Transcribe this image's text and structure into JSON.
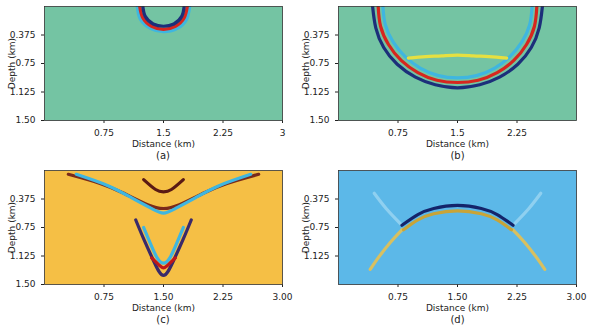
{
  "chart_data": [
    {
      "type": "line",
      "title": "(a)",
      "xlabel": "Distance (km)",
      "ylabel": "Depth (km)",
      "color": "#74c4a3",
      "xlim": [
        0,
        3
      ],
      "ylim": [
        0,
        1.5
      ],
      "xticks": [
        0.75,
        1.5,
        2.25,
        3
      ],
      "yticks": [
        0.375,
        0.75,
        1.125,
        {
          "value": 1.5,
          "label": "1.50"
        }
      ],
      "series": [
        {
          "color": "#3fb6e0",
          "x": [
            1.17,
            1.21,
            1.34,
            1.5,
            1.67,
            1.79,
            1.83
          ],
          "values": [
            0,
            0.17,
            0.29,
            0.33,
            0.29,
            0.17,
            0
          ]
        },
        {
          "color": "#d7261e",
          "x": [
            1.2,
            1.24,
            1.35,
            1.5,
            1.65,
            1.76,
            1.8
          ],
          "values": [
            0,
            0.15,
            0.26,
            0.3,
            0.26,
            0.15,
            0
          ]
        },
        {
          "color": "#1c2f7a",
          "x": [
            1.24,
            1.27,
            1.37,
            1.5,
            1.63,
            1.73,
            1.76
          ],
          "values": [
            0,
            0.13,
            0.23,
            0.26,
            0.23,
            0.13,
            0
          ]
        }
      ]
    },
    {
      "type": "line",
      "title": "(b)",
      "xlabel": "Distance (km)",
      "ylabel": "Depth (km)",
      "color": "#74c4a3",
      "xlim": [
        0,
        3
      ],
      "ylim": [
        0,
        1.5
      ],
      "xticks": [
        0.75,
        1.5,
        2.25
      ],
      "yticks": [
        0.375,
        0.75,
        1.125,
        {
          "value": 1.5,
          "label": "1.50"
        }
      ],
      "series": [
        {
          "color": "#1c2f7a",
          "x": [
            0.43,
            0.47,
            0.57,
            0.74,
            0.97,
            1.22,
            1.5,
            1.78,
            2.03,
            2.26,
            2.43,
            2.53,
            2.57
          ],
          "values": [
            0,
            0.28,
            0.54,
            0.76,
            0.93,
            1.03,
            1.07,
            1.03,
            0.93,
            0.76,
            0.54,
            0.28,
            0
          ]
        },
        {
          "color": "#d7261e",
          "x": [
            0.5,
            0.53,
            0.63,
            0.79,
            1.0,
            1.24,
            1.5,
            1.76,
            2.0,
            2.21,
            2.37,
            2.47,
            2.5
          ],
          "values": [
            0,
            0.26,
            0.5,
            0.71,
            0.87,
            0.97,
            1.0,
            0.97,
            0.87,
            0.71,
            0.5,
            0.26,
            0
          ]
        },
        {
          "color": "#3fb6e0",
          "x": [
            0.56,
            0.59,
            0.69,
            0.84,
            1.03,
            1.26,
            1.5,
            1.74,
            1.97,
            2.16,
            2.31,
            2.41,
            2.44
          ],
          "values": [
            0,
            0.24,
            0.47,
            0.66,
            0.81,
            0.91,
            0.94,
            0.91,
            0.81,
            0.66,
            0.47,
            0.24,
            0
          ]
        },
        {
          "color": "#e6e040",
          "x": [
            0.88,
            1.1,
            1.3,
            1.5,
            1.7,
            1.9,
            2.12
          ],
          "values": [
            0.68,
            0.66,
            0.65,
            0.64,
            0.65,
            0.66,
            0.68
          ]
        }
      ]
    },
    {
      "type": "line",
      "title": "(c)",
      "xlabel": "Distance (km)",
      "ylabel": "Depth (km)",
      "color": "#f5bf45",
      "xlim": [
        0,
        3
      ],
      "ylim": [
        0,
        1.5
      ],
      "xticks": [
        0.75,
        {
          "value": 1.5,
          "label": "1.50"
        },
        2.25,
        {
          "value": 3,
          "label": "3.00"
        }
      ],
      "yticks": [
        0.375,
        0.75,
        1.125,
        {
          "value": 1.5,
          "label": "1.50"
        }
      ],
      "series": [
        {
          "color": "#7a2a1a",
          "x": [
            0.3,
            0.7,
            1.0,
            1.3,
            1.5,
            1.7,
            2.0,
            2.3,
            2.7
          ],
          "values": [
            0.05,
            0.17,
            0.3,
            0.45,
            0.5,
            0.45,
            0.3,
            0.17,
            0.05
          ]
        },
        {
          "color": "#3fb6e0",
          "x": [
            0.4,
            0.8,
            1.1,
            1.35,
            1.5,
            1.65,
            1.9,
            2.2,
            2.6
          ],
          "values": [
            0.05,
            0.2,
            0.36,
            0.5,
            0.56,
            0.5,
            0.36,
            0.2,
            0.05
          ]
        },
        {
          "color": "#5a1a14",
          "x": [
            1.25,
            1.4,
            1.5,
            1.6,
            1.75
          ],
          "values": [
            0.12,
            0.25,
            0.28,
            0.25,
            0.12
          ]
        },
        {
          "color": "#3a2a6a",
          "x": [
            1.15,
            1.25,
            1.38,
            1.5,
            1.62,
            1.75,
            1.85
          ],
          "values": [
            0.65,
            0.9,
            1.2,
            1.38,
            1.2,
            0.9,
            0.65
          ]
        },
        {
          "color": "#3fb6e0",
          "x": [
            1.25,
            1.33,
            1.42,
            1.5,
            1.58,
            1.67,
            1.75
          ],
          "values": [
            0.75,
            0.95,
            1.15,
            1.22,
            1.15,
            0.95,
            0.75
          ]
        },
        {
          "color": "#c01818",
          "x": [
            1.35,
            1.45,
            1.5,
            1.55,
            1.65
          ],
          "values": [
            1.15,
            1.25,
            1.28,
            1.25,
            1.15
          ]
        }
      ]
    },
    {
      "type": "line",
      "title": "(d)",
      "xlabel": "Distance (km)",
      "ylabel": "Depth (km)",
      "color": "#5cb8e8",
      "xlim": [
        0,
        3
      ],
      "ylim": [
        0,
        1.5
      ],
      "xticks": [
        0.75,
        {
          "value": 1.5,
          "label": "1.50"
        },
        2.25,
        {
          "value": 3,
          "label": "3.00"
        }
      ],
      "yticks": [
        0.375,
        0.75,
        1.125
      ],
      "series": [
        {
          "color": "#d8c060",
          "x": [
            0.8,
            0.65,
            0.5,
            0.4
          ],
          "values": [
            0.78,
            0.95,
            1.15,
            1.3
          ]
        },
        {
          "color": "#d8c060",
          "x": [
            2.2,
            2.35,
            2.5,
            2.6
          ],
          "values": [
            0.78,
            0.95,
            1.15,
            1.3
          ]
        },
        {
          "color": "#8fd0f0",
          "x": [
            0.78,
            0.6,
            0.45
          ],
          "values": [
            0.7,
            0.5,
            0.3
          ]
        },
        {
          "color": "#8fd0f0",
          "x": [
            2.22,
            2.4,
            2.55
          ],
          "values": [
            0.7,
            0.5,
            0.3
          ]
        },
        {
          "color": "#14246a",
          "x": [
            0.8,
            1.0,
            1.2,
            1.5,
            1.8,
            2.0,
            2.2
          ],
          "values": [
            0.72,
            0.58,
            0.5,
            0.46,
            0.5,
            0.58,
            0.72
          ]
        },
        {
          "color": "#c9a437",
          "x": [
            0.82,
            1.0,
            1.2,
            1.5,
            1.8,
            2.0,
            2.18
          ],
          "values": [
            0.78,
            0.65,
            0.57,
            0.53,
            0.57,
            0.65,
            0.78
          ]
        }
      ]
    }
  ]
}
